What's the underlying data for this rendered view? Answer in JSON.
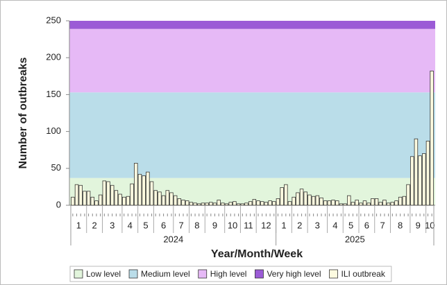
{
  "chart_data": {
    "type": "bar",
    "y_label": "Number of outbreaks",
    "x_label": "Year/Month/Week",
    "ylim": [
      0,
      250
    ],
    "yticks": [
      0,
      50,
      100,
      150,
      200,
      250
    ],
    "bands": [
      {
        "name": "Low level",
        "color": "#e2f5dc",
        "range": [
          0,
          37
        ]
      },
      {
        "name": "Medium level",
        "color": "#badde9",
        "range": [
          37,
          153
        ]
      },
      {
        "name": "High level",
        "color": "#e6b9f6",
        "range": [
          153,
          239
        ]
      },
      {
        "name": "Very high level",
        "color": "#9b5bd6",
        "range": [
          239,
          250
        ]
      }
    ],
    "series_name": "ILI outbreak",
    "color": "#fdfbe0",
    "groups": [
      {
        "label": "2024",
        "months": [
          {
            "label": "1",
            "values": [
              11,
              28,
              27,
              19
            ]
          },
          {
            "label": "2",
            "values": [
              19,
              11,
              6,
              14
            ]
          },
          {
            "label": "3",
            "values": [
              33,
              32,
              27,
              20,
              15
            ]
          },
          {
            "label": "4",
            "values": [
              11,
              12,
              29,
              57
            ]
          },
          {
            "label": "5",
            "values": [
              42,
              40,
              45,
              32
            ]
          },
          {
            "label": "6",
            "values": [
              20,
              18,
              13,
              20,
              17
            ]
          },
          {
            "label": "7",
            "values": [
              13,
              9,
              7,
              6
            ]
          },
          {
            "label": "8",
            "values": [
              4,
              3,
              2,
              3
            ]
          },
          {
            "label": "9",
            "values": [
              3,
              4,
              3,
              7,
              3
            ]
          },
          {
            "label": "10",
            "values": [
              2,
              4,
              5,
              2
            ]
          },
          {
            "label": "11",
            "values": [
              2,
              3,
              5,
              8
            ]
          },
          {
            "label": "12",
            "values": [
              6,
              5,
              4,
              6,
              5
            ]
          }
        ]
      },
      {
        "label": "2025",
        "months": [
          {
            "label": "1",
            "values": [
              9,
              24,
              28,
              5
            ]
          },
          {
            "label": "2",
            "values": [
              11,
              17,
              22,
              18
            ]
          },
          {
            "label": "3",
            "values": [
              14,
              12,
              13,
              10,
              6
            ]
          },
          {
            "label": "4",
            "values": [
              6,
              7,
              6,
              2
            ]
          },
          {
            "label": "5",
            "values": [
              2,
              13,
              4,
              7
            ]
          },
          {
            "label": "6",
            "values": [
              3,
              6,
              3,
              9
            ]
          },
          {
            "label": "7",
            "values": [
              9,
              4,
              7,
              3
            ]
          },
          {
            "label": "8",
            "values": [
              4,
              6,
              11,
              12,
              28
            ]
          },
          {
            "label": "9",
            "values": [
              66,
              90,
              67,
              70
            ]
          },
          {
            "label": "10",
            "values": [
              87,
              182
            ]
          }
        ]
      }
    ]
  }
}
